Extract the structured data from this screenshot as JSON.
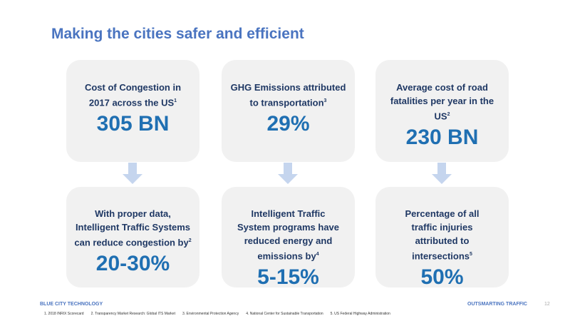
{
  "title": "Making the cities safer and efficient",
  "top_boxes": [
    {
      "label": "Cost of Congestion in 2017 across the US",
      "sup": "1",
      "value": "305 BN"
    },
    {
      "label": "GHG Emissions attributed to transportation",
      "sup": "3",
      "value": "29%"
    },
    {
      "label": "Average cost of road fatalities per year in the US",
      "sup": "2",
      "value": "230 BN"
    }
  ],
  "bottom_boxes": [
    {
      "label": "With proper data, Intelligent Traffic Systems can reduce congestion by",
      "sup": "2",
      "value": "20-30%"
    },
    {
      "label": "Intelligent Traffic System programs have reduced energy and emissions by",
      "sup": "4",
      "value": "5-15%"
    },
    {
      "label": "Percentage of all traffic injuries attributed to intersections",
      "sup": "5",
      "value": "50%"
    }
  ],
  "footer": {
    "company": "BLUE CITY TECHNOLOGY",
    "tagline": "OUTSMARTING TRAFFIC",
    "page": "12",
    "references": [
      "1. 2018 INRIX Scorecard",
      "2. Transparency Market Research: Global ITS Market",
      "3. Environmental Protection Agency",
      "4. National Center for Sustainable Transportation",
      "5. US Federal Highway Administration"
    ]
  },
  "colors": {
    "title": "#4a74c0",
    "label": "#1f3864",
    "value": "#1f6fb2",
    "box": "#f1f1f1",
    "arrow": "#c5d5ee"
  }
}
